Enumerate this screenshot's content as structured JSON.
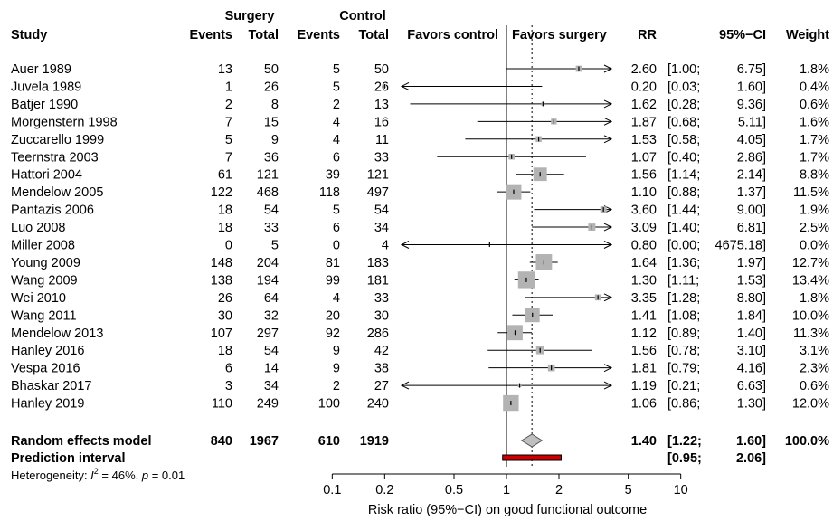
{
  "chart_data": {
    "type": "forest",
    "columns": {
      "study": "Study",
      "surgery_group": "Surgery",
      "control_group": "Control",
      "events": "Events",
      "total": "Total",
      "favors_control": "Favors control",
      "favors_surgery": "Favors surgery",
      "rr": "RR",
      "ci": "95%−CI",
      "weight": "Weight"
    },
    "studies": [
      {
        "study": "Auer 1989",
        "s_events": "13",
        "s_total": "50",
        "c_events": "5",
        "c_total": "50",
        "rr": 2.6,
        "lower": 1.0,
        "upper": 6.75,
        "rr_text": "2.60",
        "ci_lower_text": "[1.00;",
        "ci_upper_text": "6.75]",
        "weight_text": "1.8%"
      },
      {
        "study": "Juvela 1989",
        "s_events": "1",
        "s_total": "26",
        "c_events": "5",
        "c_total": "26",
        "rr": 0.2,
        "lower": 0.03,
        "upper": 1.6,
        "rr_text": "0.20",
        "ci_lower_text": "[0.03;",
        "ci_upper_text": "1.60]",
        "weight_text": "0.4%"
      },
      {
        "study": "Batjer 1990",
        "s_events": "2",
        "s_total": "8",
        "c_events": "2",
        "c_total": "13",
        "rr": 1.62,
        "lower": 0.28,
        "upper": 9.36,
        "rr_text": "1.62",
        "ci_lower_text": "[0.28;",
        "ci_upper_text": "9.36]",
        "weight_text": "0.6%"
      },
      {
        "study": "Morgenstern 1998",
        "s_events": "7",
        "s_total": "15",
        "c_events": "4",
        "c_total": "16",
        "rr": 1.87,
        "lower": 0.68,
        "upper": 5.11,
        "rr_text": "1.87",
        "ci_lower_text": "[0.68;",
        "ci_upper_text": "5.11]",
        "weight_text": "1.6%"
      },
      {
        "study": "Zuccarello 1999",
        "s_events": "5",
        "s_total": "9",
        "c_events": "4",
        "c_total": "11",
        "rr": 1.53,
        "lower": 0.58,
        "upper": 4.05,
        "rr_text": "1.53",
        "ci_lower_text": "[0.58;",
        "ci_upper_text": "4.05]",
        "weight_text": "1.7%"
      },
      {
        "study": "Teernstra 2003",
        "s_events": "7",
        "s_total": "36",
        "c_events": "6",
        "c_total": "33",
        "rr": 1.07,
        "lower": 0.4,
        "upper": 2.86,
        "rr_text": "1.07",
        "ci_lower_text": "[0.40;",
        "ci_upper_text": "2.86]",
        "weight_text": "1.7%"
      },
      {
        "study": "Hattori 2004",
        "s_events": "61",
        "s_total": "121",
        "c_events": "39",
        "c_total": "121",
        "rr": 1.56,
        "lower": 1.14,
        "upper": 2.14,
        "rr_text": "1.56",
        "ci_lower_text": "[1.14;",
        "ci_upper_text": "2.14]",
        "weight_text": "8.8%"
      },
      {
        "study": "Mendelow 2005",
        "s_events": "122",
        "s_total": "468",
        "c_events": "118",
        "c_total": "497",
        "rr": 1.1,
        "lower": 0.88,
        "upper": 1.37,
        "rr_text": "1.10",
        "ci_lower_text": "[0.88;",
        "ci_upper_text": "1.37]",
        "weight_text": "11.5%"
      },
      {
        "study": "Pantazis 2006",
        "s_events": "18",
        "s_total": "54",
        "c_events": "5",
        "c_total": "54",
        "rr": 3.6,
        "lower": 1.44,
        "upper": 9.0,
        "rr_text": "3.60",
        "ci_lower_text": "[1.44;",
        "ci_upper_text": "9.00]",
        "weight_text": "1.9%"
      },
      {
        "study": "Luo 2008",
        "s_events": "18",
        "s_total": "33",
        "c_events": "6",
        "c_total": "34",
        "rr": 3.09,
        "lower": 1.4,
        "upper": 6.81,
        "rr_text": "3.09",
        "ci_lower_text": "[1.40;",
        "ci_upper_text": "6.81]",
        "weight_text": "2.5%"
      },
      {
        "study": "Miller 2008",
        "s_events": "0",
        "s_total": "5",
        "c_events": "0",
        "c_total": "4",
        "rr": 0.8,
        "lower": 0.0,
        "upper": 4675.18,
        "rr_text": "0.80",
        "ci_lower_text": "[0.00;",
        "ci_upper_text": "4675.18]",
        "weight_text": "0.0%"
      },
      {
        "study": "Young 2009",
        "s_events": "148",
        "s_total": "204",
        "c_events": "81",
        "c_total": "183",
        "rr": 1.64,
        "lower": 1.36,
        "upper": 1.97,
        "rr_text": "1.64",
        "ci_lower_text": "[1.36;",
        "ci_upper_text": "1.97]",
        "weight_text": "12.7%"
      },
      {
        "study": "Wang 2009",
        "s_events": "138",
        "s_total": "194",
        "c_events": "99",
        "c_total": "181",
        "rr": 1.3,
        "lower": 1.11,
        "upper": 1.53,
        "rr_text": "1.30",
        "ci_lower_text": "[1.11;",
        "ci_upper_text": "1.53]",
        "weight_text": "13.4%"
      },
      {
        "study": "Wei 2010",
        "s_events": "26",
        "s_total": "64",
        "c_events": "4",
        "c_total": "33",
        "rr": 3.35,
        "lower": 1.28,
        "upper": 8.8,
        "rr_text": "3.35",
        "ci_lower_text": "[1.28;",
        "ci_upper_text": "8.80]",
        "weight_text": "1.8%"
      },
      {
        "study": "Wang 2011",
        "s_events": "30",
        "s_total": "32",
        "c_events": "20",
        "c_total": "30",
        "rr": 1.41,
        "lower": 1.08,
        "upper": 1.84,
        "rr_text": "1.41",
        "ci_lower_text": "[1.08;",
        "ci_upper_text": "1.84]",
        "weight_text": "10.0%"
      },
      {
        "study": "Mendelow 2013",
        "s_events": "107",
        "s_total": "297",
        "c_events": "92",
        "c_total": "286",
        "rr": 1.12,
        "lower": 0.89,
        "upper": 1.4,
        "rr_text": "1.12",
        "ci_lower_text": "[0.89;",
        "ci_upper_text": "1.40]",
        "weight_text": "11.3%"
      },
      {
        "study": "Hanley 2016",
        "s_events": "18",
        "s_total": "54",
        "c_events": "9",
        "c_total": "42",
        "rr": 1.56,
        "lower": 0.78,
        "upper": 3.1,
        "rr_text": "1.56",
        "ci_lower_text": "[0.78;",
        "ci_upper_text": "3.10]",
        "weight_text": "3.1%"
      },
      {
        "study": "Vespa 2016",
        "s_events": "6",
        "s_total": "14",
        "c_events": "9",
        "c_total": "38",
        "rr": 1.81,
        "lower": 0.79,
        "upper": 4.16,
        "rr_text": "1.81",
        "ci_lower_text": "[0.79;",
        "ci_upper_text": "4.16]",
        "weight_text": "2.3%"
      },
      {
        "study": "Bhaskar 2017",
        "s_events": "3",
        "s_total": "34",
        "c_events": "2",
        "c_total": "27",
        "rr": 1.19,
        "lower": 0.21,
        "upper": 6.63,
        "rr_text": "1.19",
        "ci_lower_text": "[0.21;",
        "ci_upper_text": "6.63]",
        "weight_text": "0.6%"
      },
      {
        "study": "Hanley 2019",
        "s_events": "110",
        "s_total": "249",
        "c_events": "100",
        "c_total": "240",
        "rr": 1.06,
        "lower": 0.86,
        "upper": 1.3,
        "rr_text": "1.06",
        "ci_lower_text": "[0.86;",
        "ci_upper_text": "1.30]",
        "weight_text": "12.0%"
      }
    ],
    "summary": {
      "label": "Random effects model",
      "s_events": "840",
      "s_total": "1967",
      "c_events": "610",
      "c_total": "1919",
      "rr": 1.4,
      "lower": 1.22,
      "upper": 1.6,
      "rr_text": "1.40",
      "ci_lower_text": "[1.22;",
      "ci_upper_text": "1.60]",
      "weight_text": "100.0%"
    },
    "prediction": {
      "label": "Prediction interval",
      "lower": 0.95,
      "upper": 2.06,
      "ci_lower_text": "[0.95;",
      "ci_upper_text": "2.06]"
    },
    "heterogeneity": {
      "prefix": "Heterogeneity: ",
      "i_symbol": "I",
      "i_superscript": "2",
      "i_value": " = 46%, ",
      "p_symbol": "p",
      "p_value": " = 0.01"
    },
    "x_axis": {
      "scale": "log",
      "ticks": [
        0.1,
        0.2,
        0.5,
        1,
        2,
        5,
        10
      ],
      "tick_labels": [
        "0.1",
        "0.2",
        "0.5",
        "1",
        "2",
        "5",
        "10"
      ],
      "label": "Risk ratio (95%−CI) on good functional outcome",
      "xlim": [
        0.1,
        10
      ]
    },
    "colors": {
      "box": "#b3b3b3",
      "prediction_fill": "#cc0000",
      "diamond": "#bfbfbf"
    }
  }
}
